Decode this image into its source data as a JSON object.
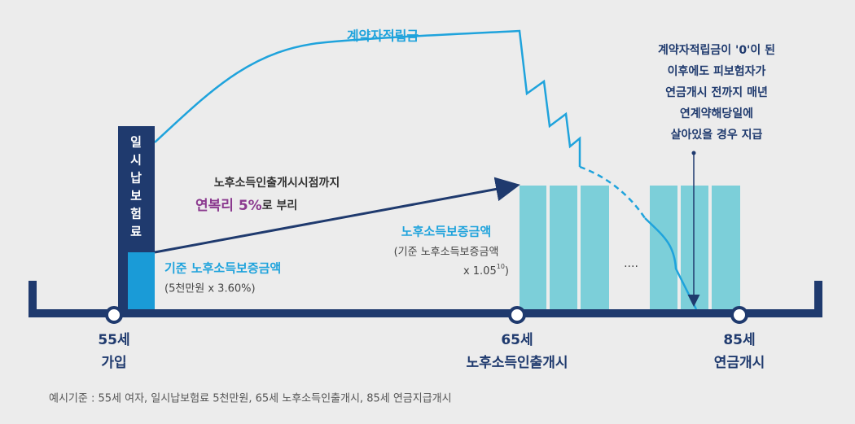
{
  "diagram": {
    "reserve_label": "계약자적립금",
    "note_lines": [
      "계약자적립금이 '0'이 된",
      "이후에도 피보험자가",
      "연금개시 전까지 매년",
      "연계약해당일에",
      "살아있을 경우 지급"
    ],
    "premium_chars": [
      "일",
      "시",
      "납",
      "보",
      "험",
      "료"
    ],
    "growth_line1": "노후소득인출개시시점까지",
    "growth_rate": "연복리 5%",
    "growth_suffix": "로 부리",
    "base_amount_title": "기준 노후소득보증금액",
    "base_amount_formula": "(5천만원 x 3.60%)",
    "guarantee_title": "노후소득보증금액",
    "guarantee_formula1": "(기준 노후소득보증금액",
    "guarantee_formula2": "x 1.05",
    "guarantee_exponent": "10",
    "guarantee_formula3": ")",
    "ellipsis": "····",
    "milestones": [
      {
        "age": "55세",
        "label": "가입"
      },
      {
        "age": "65세",
        "label": "노후소득인출개시"
      },
      {
        "age": "85세",
        "label": "연금개시"
      }
    ],
    "footnote": "예시기준 : 55세 여자, 일시납보험료 5천만원, 65세 노후소득인출개시, 85세 연금지급개시"
  }
}
